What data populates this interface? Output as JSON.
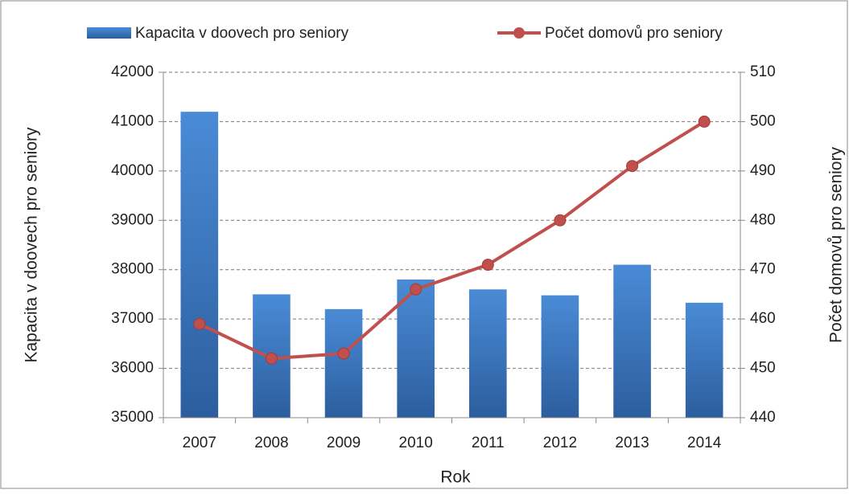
{
  "chart_data": {
    "type": "bar_line",
    "x_label": "Rok",
    "y_label": "Kapacita v doovech pro seniory",
    "y2_label": "Počet domovů pro seniory",
    "categories": [
      "2007",
      "2008",
      "2009",
      "2010",
      "2011",
      "2012",
      "2013",
      "2014"
    ],
    "series": [
      {
        "name": "Kapacita v doovech pro seniory",
        "type": "bar",
        "color": "#3a75c4",
        "values": [
          41200,
          37500,
          37200,
          37800,
          37600,
          37480,
          38100,
          37330
        ]
      },
      {
        "name": "Počet domovů pro seniory",
        "type": "line",
        "axis": "y2",
        "color": "#c0504d",
        "values": [
          459,
          452,
          453,
          466,
          471,
          480,
          491,
          500
        ]
      }
    ],
    "ylim": [
      35000,
      42000
    ],
    "yticks": [
      35000,
      36000,
      37000,
      38000,
      39000,
      40000,
      41000,
      42000
    ],
    "y2lim": [
      440,
      510
    ],
    "y2ticks": [
      440,
      450,
      460,
      470,
      480,
      490,
      500,
      510
    ],
    "grid": true,
    "legend": "top"
  }
}
